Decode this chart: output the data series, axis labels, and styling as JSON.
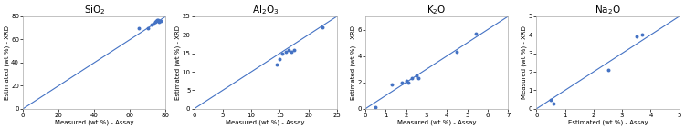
{
  "plots": [
    {
      "title": "SiO$_2$",
      "xlabel": "Measured (wt %) - Assay",
      "ylabel": "Estimated (wt %) - XRD",
      "xlim": [
        0,
        80
      ],
      "ylim": [
        0,
        80
      ],
      "xticks": [
        0,
        20,
        40,
        60,
        80
      ],
      "yticks": [
        0,
        20,
        40,
        60,
        80
      ],
      "x_data": [
        65,
        70,
        72,
        73,
        74,
        74.5,
        75,
        75.5,
        76,
        77
      ],
      "y_data": [
        70,
        70,
        73,
        74,
        75,
        76,
        77,
        77,
        75,
        76
      ],
      "line_end": 80
    },
    {
      "title": "Al$_2$O$_3$",
      "xlabel": "Measured (wt %) - Assay",
      "ylabel": "Estimated (wt %) - XRD",
      "xlim": [
        0,
        25
      ],
      "ylim": [
        0,
        25
      ],
      "xticks": [
        0,
        5,
        10,
        15,
        20,
        25
      ],
      "yticks": [
        0,
        5,
        10,
        15,
        20,
        25
      ],
      "x_data": [
        14.5,
        15.0,
        15.5,
        16.0,
        16.5,
        17.0,
        17.5,
        22.5
      ],
      "y_data": [
        12.0,
        13.5,
        15.0,
        15.5,
        16.0,
        15.5,
        16.0,
        22.0
      ],
      "line_end": 25
    },
    {
      "title": "K$_2$O",
      "xlabel": "Measured (wt %) - Assay",
      "ylabel": "Estimated (wt %) - XRD",
      "xlim": [
        0,
        7
      ],
      "ylim": [
        0,
        7
      ],
      "xticks": [
        0,
        1,
        2,
        3,
        4,
        5,
        6,
        7
      ],
      "yticks": [
        0,
        2,
        4,
        6
      ],
      "x_data": [
        0.5,
        1.3,
        1.8,
        2.0,
        2.1,
        2.3,
        2.5,
        2.6,
        4.5,
        5.4
      ],
      "y_data": [
        0.1,
        1.85,
        2.0,
        2.1,
        2.0,
        2.3,
        2.5,
        2.3,
        4.3,
        5.7
      ],
      "line_end": 7
    },
    {
      "title": "Na$_2$O",
      "xlabel": "Estimated (wt %) - Assay",
      "ylabel": "Measured (wt %) - XRD",
      "xlim": [
        0,
        5
      ],
      "ylim": [
        0,
        5
      ],
      "xticks": [
        0,
        1,
        2,
        3,
        4,
        5
      ],
      "yticks": [
        0,
        1,
        2,
        3,
        4,
        5
      ],
      "x_data": [
        0.5,
        0.6,
        2.5,
        3.5,
        3.7
      ],
      "y_data": [
        0.5,
        0.3,
        2.1,
        3.9,
        4.0
      ],
      "line_end": 5
    }
  ],
  "dot_color": "#4472C4",
  "line_color": "#4472C4",
  "bg_color": "#ffffff",
  "spine_color": "#aaaaaa",
  "title_fontsize": 7.5,
  "label_fontsize": 5.0,
  "tick_fontsize": 5.0,
  "dot_size": 8
}
